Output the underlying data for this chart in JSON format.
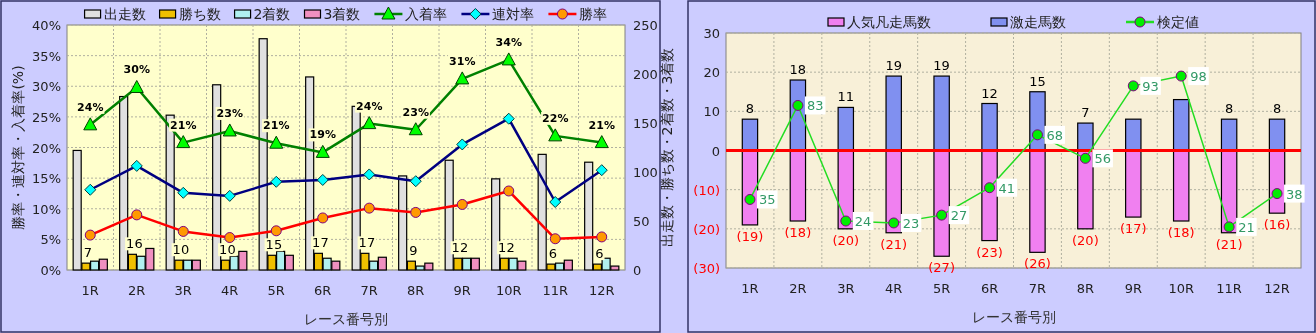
{
  "chart_data": [
    {
      "type": "bar",
      "categories": [
        "1R",
        "2R",
        "3R",
        "4R",
        "5R",
        "6R",
        "7R",
        "8R",
        "9R",
        "10R",
        "11R",
        "12R"
      ],
      "xlabel": "レース番号別",
      "ylabel": "勝率・連対率・入着率(%)",
      "y2label": "出走数・勝ち数・2着数・3着数",
      "ylim": [
        0,
        40
      ],
      "yticks": [
        {
          "value": 0,
          "label": "0%"
        },
        {
          "value": 5,
          "label": "5%"
        },
        {
          "value": 10,
          "label": "10%"
        },
        {
          "value": 15,
          "label": "15%"
        },
        {
          "value": 20,
          "label": "20%"
        },
        {
          "value": 25,
          "label": "25%"
        },
        {
          "value": 30,
          "label": "30%"
        },
        {
          "value": 35,
          "label": "35%"
        },
        {
          "value": 40,
          "label": "40%"
        }
      ],
      "y2lim": [
        0,
        250
      ],
      "y2ticks": [
        0,
        50,
        100,
        150,
        200,
        250
      ],
      "grid": true,
      "legend": "top",
      "series": [
        {
          "name": "出走数",
          "type": "bar",
          "axis": "y2",
          "color": "#e0e0e0",
          "values": [
            122,
            177,
            158,
            189,
            236,
            197,
            167,
            96,
            112,
            93,
            118,
            110
          ]
        },
        {
          "name": "勝ち数",
          "type": "bar",
          "axis": "y2",
          "color": "#f0c000",
          "values": [
            7,
            16,
            10,
            10,
            15,
            17,
            17,
            9,
            12,
            12,
            6,
            6
          ],
          "value_labels": [
            "7",
            "16",
            "10",
            "10",
            "15",
            "17",
            "17",
            "9",
            "12",
            "12",
            "6",
            "6"
          ]
        },
        {
          "name": "2着数",
          "type": "bar",
          "axis": "y2",
          "color": "#b0f0f0",
          "values": [
            9,
            14,
            10,
            14,
            19,
            12,
            9,
            4,
            12,
            12,
            7,
            12
          ]
        },
        {
          "name": "3着数",
          "type": "bar",
          "axis": "y2",
          "color": "#f090c0",
          "values": [
            11,
            22,
            10,
            19,
            15,
            9,
            13,
            7,
            12,
            9,
            10,
            4
          ]
        },
        {
          "name": "入着率",
          "type": "line",
          "color": "#008000",
          "marker": "triangle",
          "colors": [
            "#00ff00",
            "#00ff00",
            "#00ff00",
            "#00ff00",
            "#00ff00",
            "#00ff00",
            "#00ff00",
            "#00ff00",
            "#00ff00",
            "#00ff00",
            "#00ff00",
            "#00ff00"
          ],
          "values": [
            23.7,
            29.8,
            20.8,
            22.7,
            20.7,
            19.2,
            23.9,
            22.9,
            31.2,
            34.3,
            21.9,
            20.8
          ],
          "value_labels": [
            "24%",
            "30%",
            "21%",
            "23%",
            "21%",
            "19%",
            "24%",
            "23%",
            "31%",
            "34%",
            "22%",
            "21%"
          ]
        },
        {
          "name": "連対率",
          "type": "line",
          "color": "#000080",
          "marker": "diamond",
          "colors": [
            "#00ffff",
            "#00ffff",
            "#00ffff",
            "#00ffff",
            "#00ffff",
            "#00ffff",
            "#00ffff",
            "#00ffff",
            "#00ffff",
            "#00ffff",
            "#00ffff",
            "#00ffff"
          ],
          "values": [
            13.1,
            17.0,
            12.6,
            12.1,
            14.4,
            14.7,
            15.6,
            14.5,
            20.5,
            24.7,
            11.1,
            16.3
          ]
        },
        {
          "name": "勝率",
          "type": "line",
          "color": "#ff0000",
          "marker": "circle",
          "colors": [
            "#ff9900",
            "#ff9900",
            "#ff9900",
            "#ff9900",
            "#ff9900",
            "#ff9900",
            "#ff9900",
            "#ff9900",
            "#ff9900",
            "#ff9900",
            "#ff9900",
            "#ff9900"
          ],
          "values": [
            5.7,
            9.0,
            6.3,
            5.3,
            6.4,
            8.5,
            10.1,
            9.4,
            10.7,
            12.9,
            5.1,
            5.4
          ]
        }
      ]
    },
    {
      "type": "bar",
      "stacked": true,
      "categories": [
        "1R",
        "2R",
        "3R",
        "4R",
        "5R",
        "6R",
        "7R",
        "8R",
        "9R",
        "10R",
        "11R",
        "12R"
      ],
      "xlabel": "レース番号別",
      "ylim": [
        -30,
        30
      ],
      "y2lim": [
        0,
        120
      ],
      "yticks": [
        {
          "value": -30,
          "label": "(30)"
        },
        {
          "value": -20,
          "label": "(20)"
        },
        {
          "value": -10,
          "label": "(10)"
        },
        0,
        10,
        20,
        30
      ],
      "grid": true,
      "legend": "top",
      "ref_lines": [
        {
          "axis": "y",
          "value": 0,
          "color": "#ff0000"
        }
      ],
      "series": [
        {
          "name": "人気凡走馬数",
          "type": "bar",
          "color": "#f080f0",
          "values": [
            -19,
            -18,
            -20,
            -21,
            -27,
            -23,
            -26,
            -20,
            -17,
            -18,
            -21,
            -16
          ],
          "value_labels": [
            "(19)",
            "(18)",
            "(20)",
            "(21)",
            "(27)",
            "(23)",
            "(26)",
            "(20)",
            "(17)",
            "(18)",
            "(21)",
            "(16)"
          ]
        },
        {
          "name": "激走馬数",
          "type": "bar",
          "color": "#8090f0",
          "values": [
            8,
            18,
            11,
            19,
            19,
            12,
            15,
            7,
            8,
            13,
            8,
            8
          ],
          "value_labels": [
            "8",
            "18",
            "11",
            "19",
            "19",
            "12",
            "15",
            "7",
            null,
            null,
            "8",
            "8"
          ]
        },
        {
          "name": "検定値",
          "type": "line",
          "axis": "y2",
          "color": "#22dd22",
          "marker": "circle",
          "colors": [
            "#00ee00",
            "#00ee00",
            "#00ee00",
            "#00ee00",
            "#00ee00",
            "#00ee00",
            "#00ee00",
            "#00ee00",
            "#00ee00",
            "#00ee00",
            "#00ee00",
            "#00ee00"
          ],
          "values": [
            35,
            83,
            24,
            23,
            27,
            41,
            68,
            56,
            93,
            98,
            21,
            38
          ],
          "data_labels": true
        }
      ]
    }
  ]
}
